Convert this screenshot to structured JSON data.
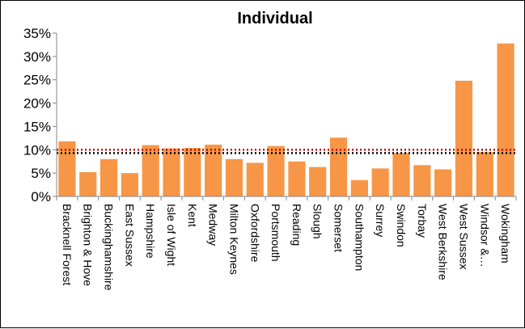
{
  "chart_data": {
    "type": "bar",
    "title": "Individual",
    "xlabel": "",
    "ylabel": "",
    "ylim": [
      0,
      35
    ],
    "ytick_labels": [
      "0%",
      "5%",
      "10%",
      "15%",
      "20%",
      "25%",
      "30%",
      "35%"
    ],
    "ytick_values": [
      0,
      5,
      10,
      15,
      20,
      25,
      30,
      35
    ],
    "categories": [
      "Bracknell Forest",
      "Brighton & Hove",
      "Buckinghamshire",
      "East Sussex",
      "Hampshire",
      "Isle of Wight",
      "Kent",
      "Medway",
      "Milton Keynes",
      "Oxfordshire",
      "Portsmouth",
      "Reading",
      "Slough",
      "Somerset",
      "Southampton",
      "Surrey",
      "Swindon",
      "Torbay",
      "West Berkshire",
      "West Sussex",
      "Windsor &…",
      "Wokingham"
    ],
    "values": [
      11.8,
      5.2,
      8.0,
      5.0,
      11.0,
      10.3,
      10.4,
      11.1,
      8.0,
      7.2,
      10.8,
      7.5,
      6.3,
      12.6,
      3.5,
      6.0,
      9.3,
      6.7,
      5.8,
      24.8,
      9.5,
      32.8
    ],
    "reference_lines": [
      {
        "style": "dotted",
        "color": "#c00000",
        "value": 10.0
      },
      {
        "style": "dotted",
        "color": "#000000",
        "value": 9.3
      }
    ],
    "bar_color": "#f79646",
    "grid": false,
    "legend": "none"
  }
}
